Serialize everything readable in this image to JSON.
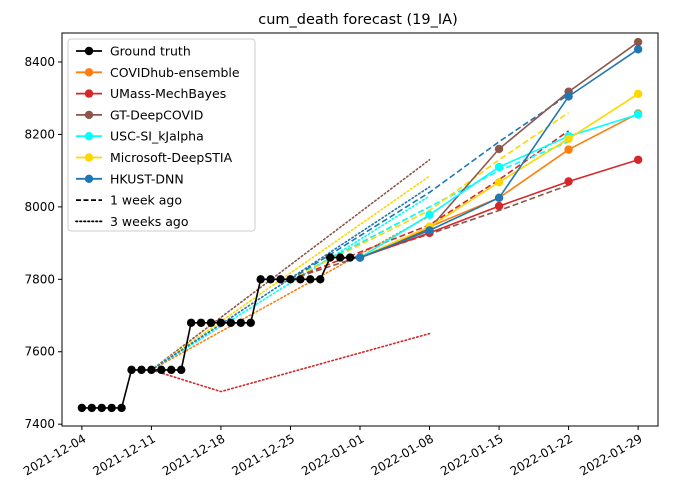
{
  "chart_data": {
    "type": "line",
    "title": "cum_death forecast (19_IA)",
    "xlabel": "",
    "ylabel": "",
    "x_ticks": [
      "2021-12-04",
      "2021-12-11",
      "2021-12-18",
      "2021-12-25",
      "2022-01-01",
      "2022-01-08",
      "2022-01-15",
      "2022-01-22",
      "2022-01-29"
    ],
    "y_ticks": [
      7400,
      7600,
      7800,
      8000,
      8200,
      8400
    ],
    "xlim": [
      "2021-12-02",
      "2022-01-31"
    ],
    "ylim": [
      7395,
      8480
    ],
    "grid": false,
    "legend_position": "top-left",
    "legend": [
      {
        "label": "Ground truth",
        "color": "#000000",
        "style": "solid-marker"
      },
      {
        "label": "COVIDhub-ensemble",
        "color": "#ff7f0e",
        "style": "solid-marker"
      },
      {
        "label": "UMass-MechBayes",
        "color": "#d62728",
        "style": "solid-marker"
      },
      {
        "label": "GT-DeepCOVID",
        "color": "#8c564b",
        "style": "solid-marker"
      },
      {
        "label": "USC-SI_kJalpha",
        "color": "#00ffff",
        "style": "solid-marker"
      },
      {
        "label": "Microsoft-DeepSTIA",
        "color": "#ffd700",
        "style": "solid-marker"
      },
      {
        "label": "HKUST-DNN",
        "color": "#1f77b4",
        "style": "solid-marker"
      },
      {
        "label": "1 week ago",
        "color": "#000000",
        "style": "dashed"
      },
      {
        "label": "3 weeks ago",
        "color": "#000000",
        "style": "dotted"
      }
    ],
    "ground_truth": {
      "name": "Ground truth",
      "color": "#000000",
      "points": [
        [
          "2021-12-04",
          7445
        ],
        [
          "2021-12-05",
          7445
        ],
        [
          "2021-12-06",
          7445
        ],
        [
          "2021-12-07",
          7445
        ],
        [
          "2021-12-08",
          7445
        ],
        [
          "2021-12-09",
          7550
        ],
        [
          "2021-12-10",
          7550
        ],
        [
          "2021-12-11",
          7550
        ],
        [
          "2021-12-12",
          7550
        ],
        [
          "2021-12-13",
          7550
        ],
        [
          "2021-12-14",
          7550
        ],
        [
          "2021-12-15",
          7680
        ],
        [
          "2021-12-16",
          7680
        ],
        [
          "2021-12-17",
          7680
        ],
        [
          "2021-12-18",
          7680
        ],
        [
          "2021-12-19",
          7680
        ],
        [
          "2021-12-20",
          7680
        ],
        [
          "2021-12-21",
          7680
        ],
        [
          "2021-12-22",
          7800
        ],
        [
          "2021-12-23",
          7800
        ],
        [
          "2021-12-24",
          7800
        ],
        [
          "2021-12-25",
          7800
        ],
        [
          "2021-12-26",
          7800
        ],
        [
          "2021-12-27",
          7800
        ],
        [
          "2021-12-28",
          7800
        ],
        [
          "2021-12-29",
          7860
        ],
        [
          "2021-12-30",
          7860
        ],
        [
          "2021-12-31",
          7860
        ],
        [
          "2022-01-01",
          7860
        ]
      ]
    },
    "series": [
      {
        "name": "COVIDhub-ensemble",
        "color": "#ff7f0e",
        "points": [
          [
            "2022-01-01",
            7860
          ],
          [
            "2022-01-08",
            7945
          ],
          [
            "2022-01-15",
            8025
          ],
          [
            "2022-01-22",
            8158
          ],
          [
            "2022-01-29",
            8258
          ]
        ],
        "week1": [
          [
            "2021-12-25",
            7800
          ],
          [
            "2022-01-08",
            8000
          ]
        ],
        "week3": [
          [
            "2021-12-11",
            7550
          ],
          [
            "2022-01-08",
            7975
          ]
        ]
      },
      {
        "name": "UMass-MechBayes",
        "color": "#d62728",
        "points": [
          [
            "2022-01-01",
            7860
          ],
          [
            "2022-01-08",
            7928
          ],
          [
            "2022-01-15",
            8002
          ],
          [
            "2022-01-22",
            8070
          ],
          [
            "2022-01-29",
            8130
          ]
        ],
        "week1": [
          [
            "2021-12-25",
            7800
          ],
          [
            "2022-01-08",
            7950
          ],
          [
            "2022-01-15",
            8075
          ],
          [
            "2022-01-22",
            8210
          ]
        ],
        "week3": [
          [
            "2021-12-11",
            7550
          ],
          [
            "2021-12-18",
            7490
          ],
          [
            "2022-01-08",
            7650
          ]
        ]
      },
      {
        "name": "GT-DeepCOVID",
        "color": "#8c564b",
        "points": [
          [
            "2022-01-01",
            7860
          ],
          [
            "2022-01-08",
            7940
          ],
          [
            "2022-01-15",
            8160
          ],
          [
            "2022-01-22",
            8318
          ],
          [
            "2022-01-29",
            8455
          ]
        ],
        "week1": [
          [
            "2021-12-25",
            7800
          ],
          [
            "2022-01-08",
            7925
          ],
          [
            "2022-01-15",
            7990
          ],
          [
            "2022-01-22",
            8060
          ]
        ],
        "week3": [
          [
            "2021-12-11",
            7550
          ],
          [
            "2022-01-08",
            8130
          ]
        ]
      },
      {
        "name": "USC-SI_kJalpha",
        "color": "#00ffff",
        "points": [
          [
            "2022-01-01",
            7860
          ],
          [
            "2022-01-08",
            7978
          ],
          [
            "2022-01-15",
            8110
          ],
          [
            "2022-01-22",
            8195
          ],
          [
            "2022-01-29",
            8255
          ]
        ],
        "week1": [
          [
            "2021-12-25",
            7800
          ],
          [
            "2022-01-08",
            8000
          ],
          [
            "2022-01-15",
            8100
          ],
          [
            "2022-01-22",
            8180
          ]
        ],
        "week3": [
          [
            "2021-12-11",
            7550
          ],
          [
            "2022-01-08",
            8030
          ]
        ]
      },
      {
        "name": "Microsoft-DeepSTIA",
        "color": "#ffd700",
        "points": [
          [
            "2022-01-01",
            7860
          ],
          [
            "2022-01-08",
            7945
          ],
          [
            "2022-01-15",
            8068
          ],
          [
            "2022-01-22",
            8188
          ],
          [
            "2022-01-29",
            8312
          ]
        ],
        "week1": [
          [
            "2021-12-25",
            7800
          ],
          [
            "2022-01-08",
            7990
          ],
          [
            "2022-01-15",
            8130
          ],
          [
            "2022-01-22",
            8260
          ]
        ],
        "week3": [
          [
            "2021-12-11",
            7550
          ],
          [
            "2022-01-08",
            8085
          ]
        ]
      },
      {
        "name": "HKUST-DNN",
        "color": "#1f77b4",
        "points": [
          [
            "2022-01-01",
            7860
          ],
          [
            "2022-01-08",
            7935
          ],
          [
            "2022-01-15",
            8025
          ],
          [
            "2022-01-22",
            8305
          ],
          [
            "2022-01-29",
            8435
          ]
        ],
        "week1": [
          [
            "2021-12-25",
            7800
          ],
          [
            "2022-01-08",
            8040
          ],
          [
            "2022-01-15",
            8180
          ],
          [
            "2022-01-22",
            8310
          ]
        ],
        "week3": [
          [
            "2021-12-11",
            7550
          ],
          [
            "2022-01-08",
            8055
          ]
        ]
      }
    ]
  }
}
